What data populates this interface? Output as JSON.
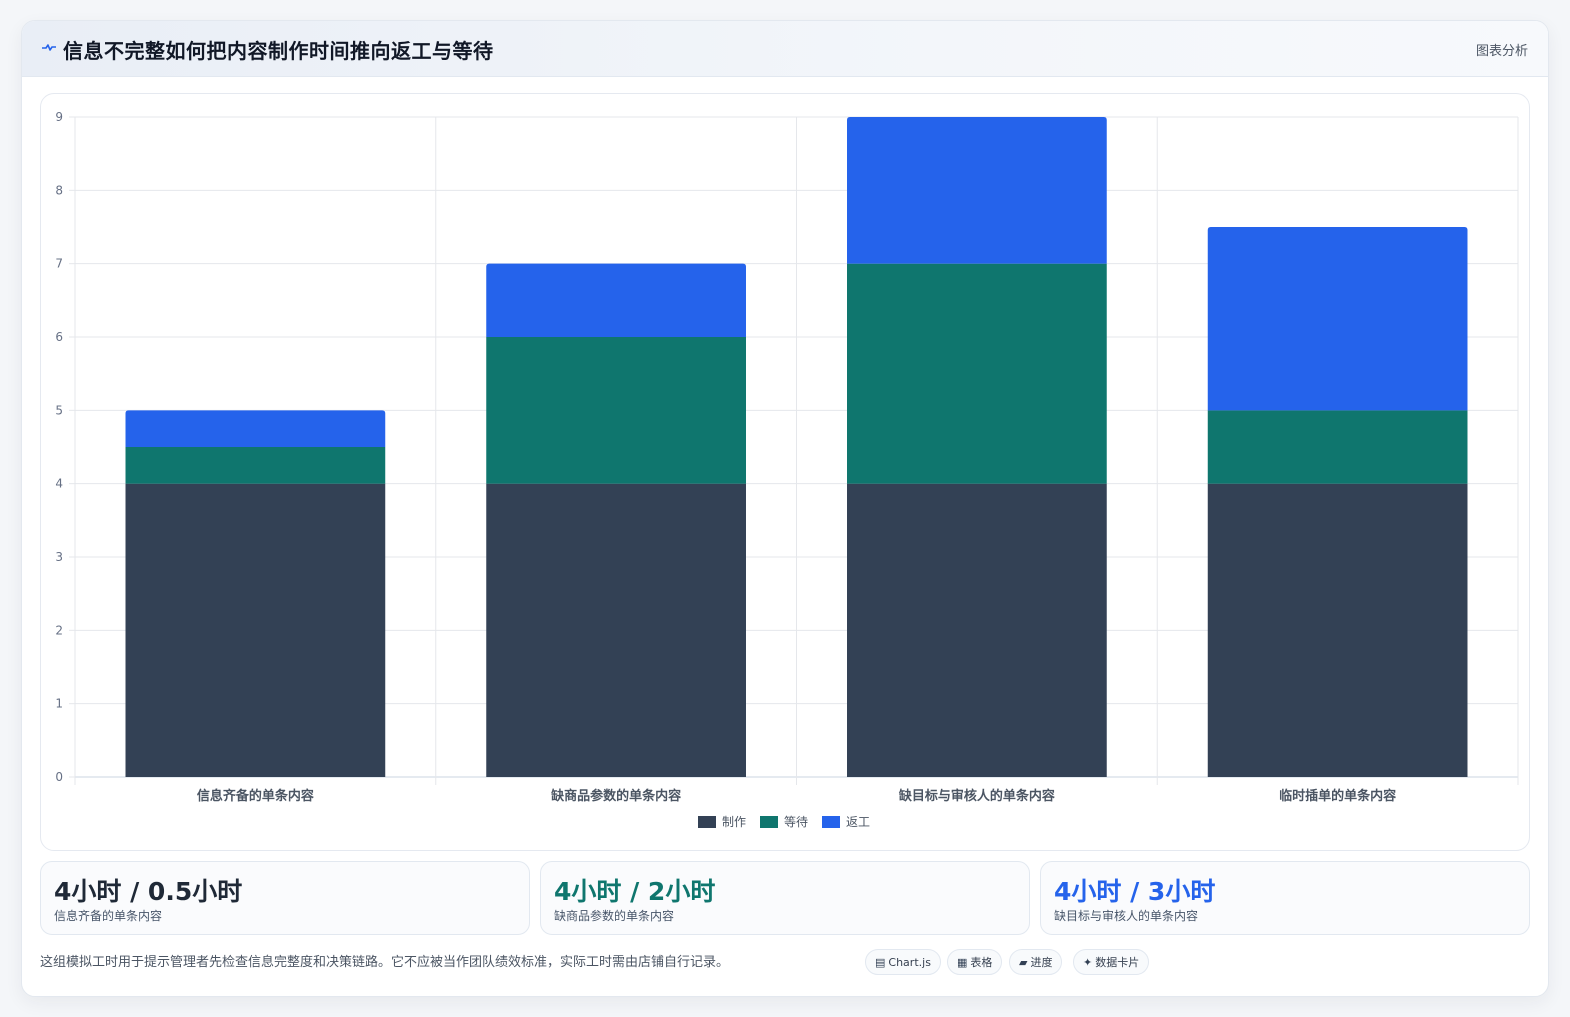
{
  "header": {
    "title": "信息不完整如何把内容制作时间推向返工与等待",
    "tag": "图表分析",
    "icon": "pulse-icon"
  },
  "colors": {
    "make": "#334155",
    "wait": "#0f766e",
    "rework": "#2563eb",
    "grid": "#e5e7eb"
  },
  "chart_data": {
    "type": "bar",
    "stacked": true,
    "categories": [
      "信息齐备的单条内容",
      "缺商品参数的单条内容",
      "缺目标与审核人的单条内容",
      "临时插单的单条内容"
    ],
    "series": [
      {
        "name": "制作",
        "values": [
          4,
          4,
          4,
          4
        ],
        "color": "#334155"
      },
      {
        "name": "等待",
        "values": [
          0.5,
          2,
          3,
          1
        ],
        "color": "#0f766e"
      },
      {
        "name": "返工",
        "values": [
          0.5,
          1,
          2,
          2.5
        ],
        "color": "#2563eb"
      }
    ],
    "ylim": [
      0,
      9
    ],
    "yticks": [
      "0",
      "1",
      "2",
      "3",
      "4",
      "5",
      "6",
      "7",
      "8",
      "9"
    ],
    "grid": true,
    "legend": "bottom-center",
    "title": "",
    "xlabel": "",
    "ylabel": ""
  },
  "stats": [
    {
      "value": "4小时 / 0.5小时",
      "label": "信息齐备的单条内容",
      "color": "#1f2937"
    },
    {
      "value": "4小时 / 2小时",
      "label": "缺商品参数的单条内容",
      "color": "#0f766e"
    },
    {
      "value": "4小时 / 3小时",
      "label": "缺目标与审核人的单条内容",
      "color": "#2563eb"
    }
  ],
  "footer": {
    "note": "这组模拟工时用于提示管理者先检查信息完整度和决策链路。它不应被当作团队绩效标准，实际工时需由店铺自行记录。",
    "pills": [
      {
        "icon": "▤",
        "label": "Chart.js"
      },
      {
        "icon": "▦",
        "label": "表格"
      },
      {
        "icon": "▰",
        "label": "进度"
      },
      {
        "icon": "✦",
        "label": "数据卡片"
      }
    ]
  }
}
